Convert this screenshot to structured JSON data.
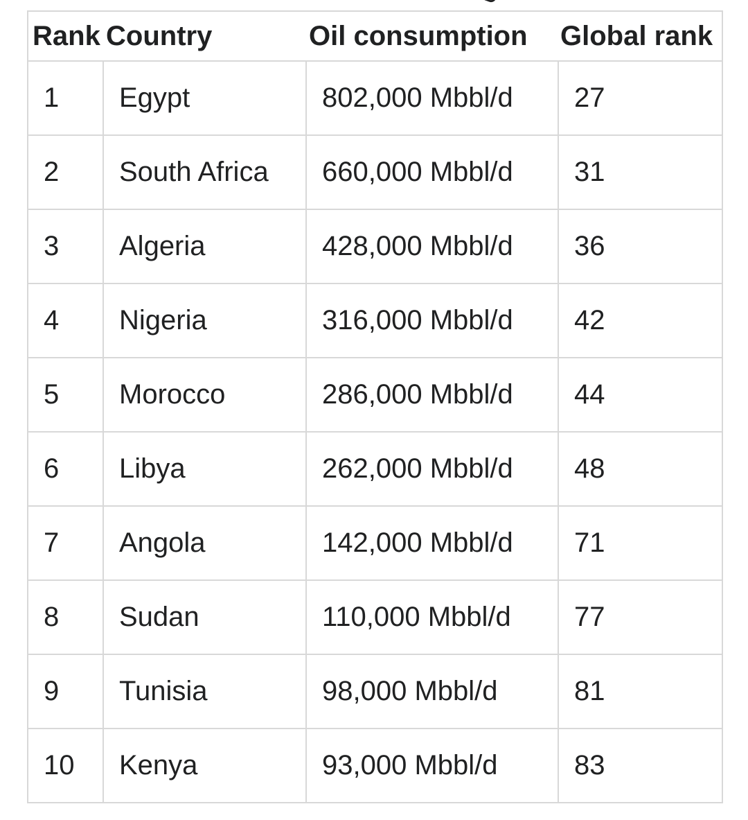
{
  "table": {
    "headers": {
      "rank": "Rank",
      "country": "Country",
      "oil_consumption": "Oil consumption",
      "global_rank": "Global rank"
    },
    "rows": [
      {
        "rank": "1",
        "country": "Egypt",
        "oil": "802,000 Mbbl/d",
        "global": "27"
      },
      {
        "rank": "2",
        "country": "South Africa",
        "oil": "660,000 Mbbl/d",
        "global": "31"
      },
      {
        "rank": "3",
        "country": "Algeria",
        "oil": "428,000 Mbbl/d",
        "global": "36"
      },
      {
        "rank": "4",
        "country": "Nigeria",
        "oil": "316,000 Mbbl/d",
        "global": "42"
      },
      {
        "rank": "5",
        "country": "Morocco",
        "oil": "286,000 Mbbl/d",
        "global": "44"
      },
      {
        "rank": "6",
        "country": "Libya",
        "oil": "262,000 Mbbl/d",
        "global": "48"
      },
      {
        "rank": "7",
        "country": "Angola",
        "oil": "142,000 Mbbl/d",
        "global": "71"
      },
      {
        "rank": "8",
        "country": "Sudan",
        "oil": "110,000 Mbbl/d",
        "global": "77"
      },
      {
        "rank": "9",
        "country": "Tunisia",
        "oil": "98,000 Mbbl/d",
        "global": "81"
      },
      {
        "rank": "10",
        "country": "Kenya",
        "oil": "93,000 Mbbl/d",
        "global": "83"
      }
    ]
  },
  "colors": {
    "text": "#202122",
    "border": "#d8d8d8",
    "background": "#ffffff"
  }
}
